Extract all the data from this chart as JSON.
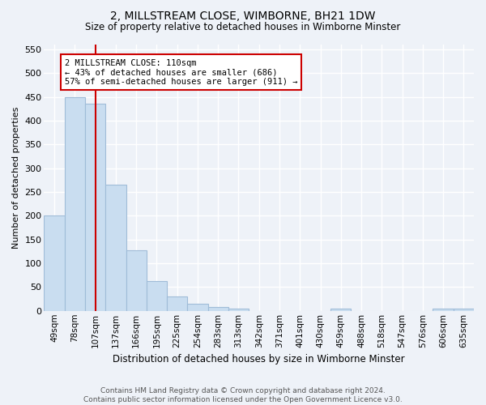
{
  "title": "2, MILLSTREAM CLOSE, WIMBORNE, BH21 1DW",
  "subtitle": "Size of property relative to detached houses in Wimborne Minster",
  "xlabel": "Distribution of detached houses by size in Wimborne Minster",
  "ylabel": "Number of detached properties",
  "bar_labels": [
    "49sqm",
    "78sqm",
    "107sqm",
    "137sqm",
    "166sqm",
    "195sqm",
    "225sqm",
    "254sqm",
    "283sqm",
    "313sqm",
    "342sqm",
    "371sqm",
    "401sqm",
    "430sqm",
    "459sqm",
    "488sqm",
    "518sqm",
    "547sqm",
    "576sqm",
    "606sqm",
    "635sqm"
  ],
  "bar_values": [
    200,
    450,
    435,
    265,
    128,
    63,
    30,
    15,
    8,
    5,
    0,
    0,
    0,
    0,
    5,
    0,
    0,
    0,
    0,
    5,
    4
  ],
  "bar_color": "#c9ddf0",
  "bar_edge_color": "#a0bcd8",
  "vline_x": 2,
  "vline_color": "#cc0000",
  "annotation_text": "2 MILLSTREAM CLOSE: 110sqm\n← 43% of detached houses are smaller (686)\n57% of semi-detached houses are larger (911) →",
  "annotation_box_color": "#ffffff",
  "annotation_box_edge": "#cc0000",
  "ylim": [
    0,
    560
  ],
  "yticks": [
    0,
    50,
    100,
    150,
    200,
    250,
    300,
    350,
    400,
    450,
    500,
    550
  ],
  "footer_line1": "Contains HM Land Registry data © Crown copyright and database right 2024.",
  "footer_line2": "Contains public sector information licensed under the Open Government Licence v3.0.",
  "background_color": "#eef2f8",
  "grid_color": "#ffffff"
}
